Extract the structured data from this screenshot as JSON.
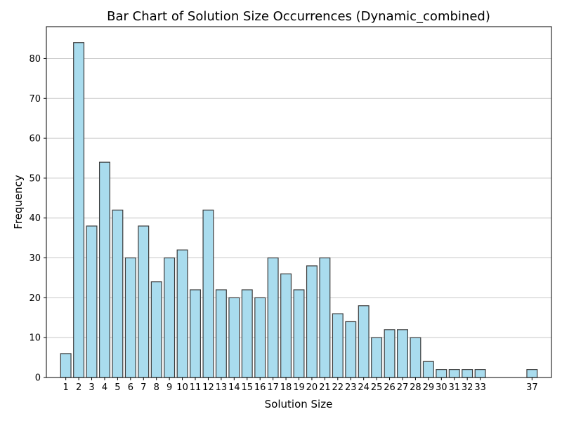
{
  "chart_data": {
    "type": "bar",
    "title": "Bar Chart of Solution Size Occurrences (Dynamic_combined)",
    "xlabel": "Solution Size",
    "ylabel": "Frequency",
    "x": [
      1,
      2,
      3,
      4,
      5,
      6,
      7,
      8,
      9,
      10,
      11,
      12,
      13,
      14,
      15,
      16,
      17,
      18,
      19,
      20,
      21,
      22,
      23,
      24,
      25,
      26,
      27,
      28,
      29,
      30,
      31,
      32,
      33,
      37
    ],
    "values": [
      6,
      84,
      38,
      54,
      42,
      30,
      38,
      24,
      30,
      32,
      22,
      42,
      22,
      20,
      22,
      20,
      30,
      26,
      22,
      28,
      30,
      16,
      14,
      18,
      10,
      12,
      12,
      10,
      4,
      2,
      2,
      2,
      2,
      2
    ],
    "xlim": [
      -0.5,
      38.5
    ],
    "ylim": [
      0,
      88
    ],
    "yticks": [
      0,
      10,
      20,
      30,
      40,
      50,
      60,
      70,
      80
    ],
    "grid": "y",
    "colors": {
      "bar_fill": "#a9dcee",
      "bar_edge": "#3b3b3b",
      "grid": "#c8c8c8"
    }
  }
}
